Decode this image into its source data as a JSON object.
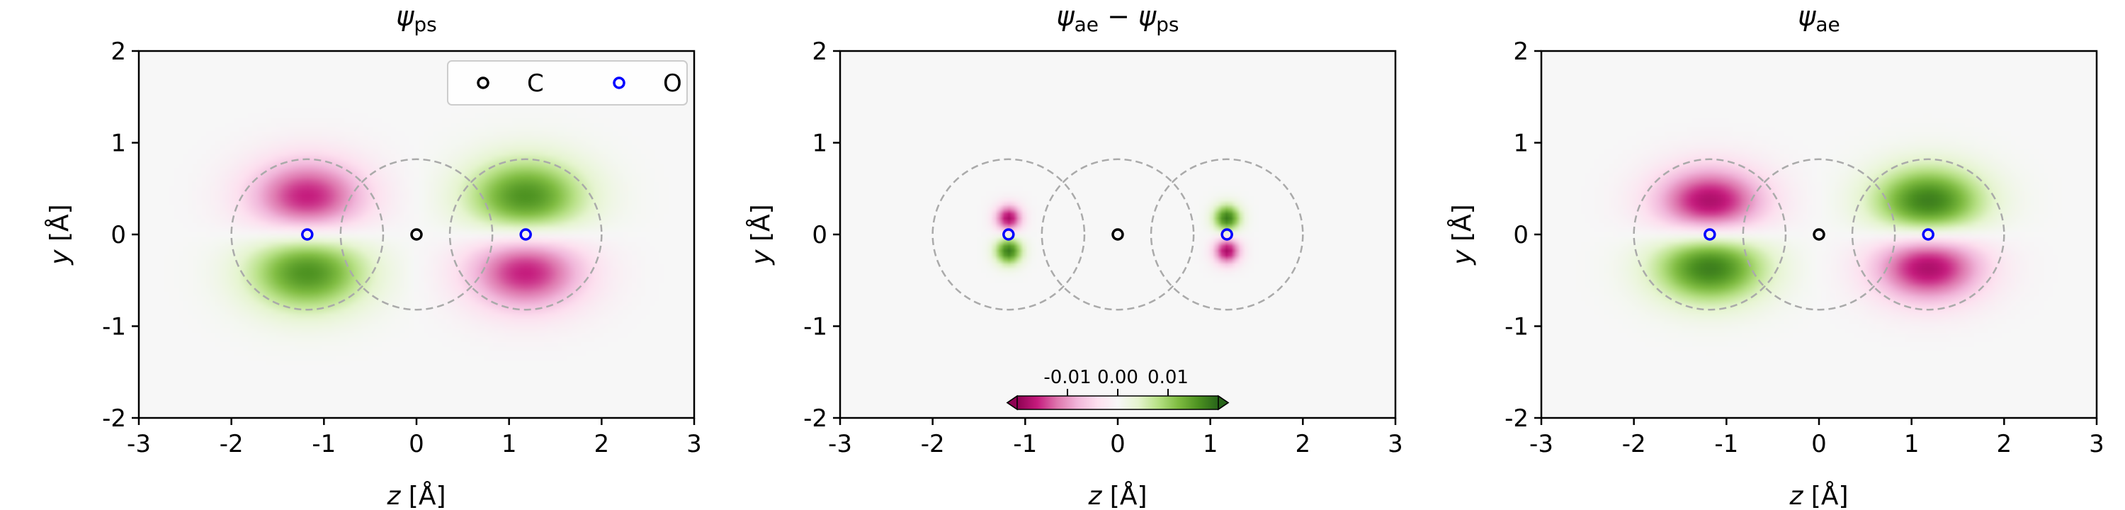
{
  "chart_data": [
    {
      "type": "heatmap",
      "title": {
        "psi": "ψ",
        "sub": "ps",
        "minus": "",
        "psi2": "",
        "sub2": ""
      },
      "xlabel": {
        "var": "z",
        "unit": " [Å]"
      },
      "ylabel": {
        "var": "y",
        "unit": " [Å]"
      },
      "xlim": [
        -3,
        3
      ],
      "ylim": [
        -2,
        2
      ],
      "xticks": [
        "-3",
        "-1",
        "-2",
        "0",
        "1",
        "2",
        "3"
      ],
      "xtick_values": [
        -3,
        -1,
        -2,
        0,
        1,
        2,
        3
      ],
      "yticks": [
        "-2",
        "-1",
        "0",
        "1",
        "2"
      ],
      "ytick_values": [
        -2,
        -1,
        0,
        1,
        2
      ],
      "colormap": "PiYG",
      "field": {
        "kind": "pseudo",
        "amplitude": 0.018,
        "lobe_dy": 0.4,
        "sigma_z": 0.45,
        "sigma_y": 0.3
      },
      "atoms": [
        {
          "name": "C",
          "z": 0.0,
          "y": 0.0,
          "color": "#000000"
        },
        {
          "name": "O",
          "z": -1.18,
          "y": 0.0,
          "color": "#0000ff"
        },
        {
          "name": "O",
          "z": 1.18,
          "y": 0.0,
          "color": "#0000ff"
        }
      ],
      "augmentation_radius": 0.82,
      "legend": {
        "placement": "upper-right",
        "entries": [
          {
            "label": "C",
            "color": "#000000"
          },
          {
            "label": "O",
            "color": "#0000ff"
          }
        ]
      }
    },
    {
      "type": "heatmap",
      "title": {
        "psi": "ψ",
        "sub": "ae",
        "minus": " − ",
        "psi2": "ψ",
        "sub2": "ps"
      },
      "xlabel": {
        "var": "z",
        "unit": " [Å]"
      },
      "ylabel": {
        "var": "y",
        "unit": " [Å]"
      },
      "xlim": [
        -3,
        3
      ],
      "ylim": [
        -2,
        2
      ],
      "xticks": [
        "-3",
        "-2",
        "-1",
        "0",
        "1",
        "2",
        "3"
      ],
      "xtick_values": [
        -3,
        -2,
        -1,
        0,
        1,
        2,
        3
      ],
      "yticks": [
        "-2",
        "-1",
        "0",
        "1",
        "2"
      ],
      "ytick_values": [
        -2,
        -1,
        0,
        1,
        2
      ],
      "colormap": "PiYG",
      "field": {
        "kind": "difference",
        "amplitude": 0.02,
        "lobe_dy": 0.18,
        "sigma_z": 0.1,
        "sigma_y": 0.1
      },
      "atoms": [
        {
          "name": "C",
          "z": 0.0,
          "y": 0.0,
          "color": "#000000"
        },
        {
          "name": "O",
          "z": -1.18,
          "y": 0.0,
          "color": "#0000ff"
        },
        {
          "name": "O",
          "z": 1.18,
          "y": 0.0,
          "color": "#0000ff"
        }
      ],
      "augmentation_radius": 0.82,
      "colorbar": {
        "ticks": [
          "-0.01",
          "0.00",
          "0.01"
        ],
        "tick_values": [
          -0.01,
          0.0,
          0.01
        ],
        "range": [
          -0.02,
          0.02
        ],
        "extend": "both",
        "placement": "lower-center"
      }
    },
    {
      "type": "heatmap",
      "title": {
        "psi": "ψ",
        "sub": "ae",
        "minus": "",
        "psi2": "",
        "sub2": ""
      },
      "xlabel": {
        "var": "z",
        "unit": " [Å]"
      },
      "ylabel": {
        "var": "y",
        "unit": " [Å]"
      },
      "xlim": [
        -3,
        3
      ],
      "ylim": [
        -2,
        2
      ],
      "xticks": [
        "-3",
        "-1",
        "-2",
        "0",
        "1",
        "2",
        "3"
      ],
      "xtick_values": [
        -3,
        -1,
        -2,
        0,
        1,
        2,
        3
      ],
      "yticks": [
        "-2",
        "-1",
        "0",
        "1",
        "2"
      ],
      "ytick_values": [
        -2,
        -1,
        0,
        1,
        2
      ],
      "colormap": "PiYG",
      "field": {
        "kind": "allelectron",
        "amplitude": 0.02,
        "lobe_dy": 0.35,
        "sigma_z": 0.42,
        "sigma_y": 0.27
      },
      "atoms": [
        {
          "name": "C",
          "z": 0.0,
          "y": 0.0,
          "color": "#000000"
        },
        {
          "name": "O",
          "z": -1.18,
          "y": 0.0,
          "color": "#0000ff"
        },
        {
          "name": "O",
          "z": 1.18,
          "y": 0.0,
          "color": "#0000ff"
        }
      ],
      "augmentation_radius": 0.82
    }
  ]
}
